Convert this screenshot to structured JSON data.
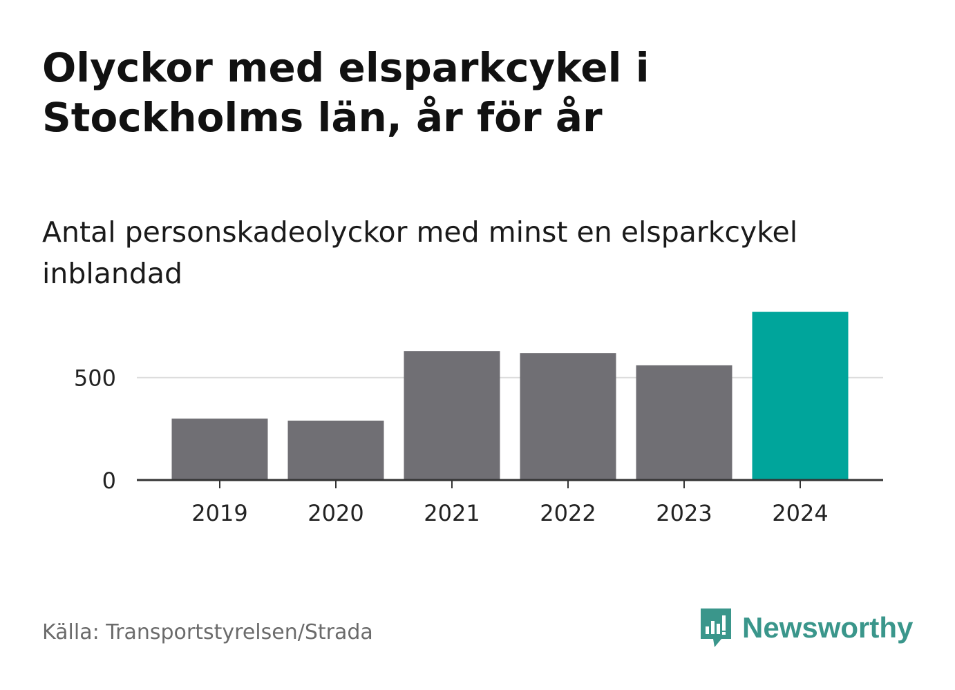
{
  "header": {
    "title": "Olyckor med elsparkcykel i Stockholms län, år för år",
    "subtitle": "Antal personskadeolyckor med minst en elsparkcykel inblandad"
  },
  "chart_data": {
    "type": "bar",
    "title": "Olyckor med elsparkcykel i Stockholms län, år för år",
    "subtitle": "Antal personskadeolyckor med minst en elsparkcykel inblandad",
    "categories": [
      "2019",
      "2020",
      "2021",
      "2022",
      "2023",
      "2024"
    ],
    "values": [
      300,
      290,
      630,
      620,
      560,
      821
    ],
    "data_labels": [
      null,
      null,
      null,
      null,
      null,
      "821"
    ],
    "yticks": [
      0,
      500
    ],
    "ytick_labels": [
      "0",
      "500"
    ],
    "ylim": [
      0,
      860
    ],
    "xlabel": "",
    "ylabel": "",
    "grid": true,
    "colors": {
      "default": "#706f74",
      "highlight": "#00a59b",
      "grid": "#dddddd",
      "axis": "#333333"
    },
    "highlight_index": 5
  },
  "footer": {
    "source": "Källa: Transportstyrelsen/Strada",
    "logo_text": "Newsworthy",
    "logo_color": "#3a968b"
  }
}
